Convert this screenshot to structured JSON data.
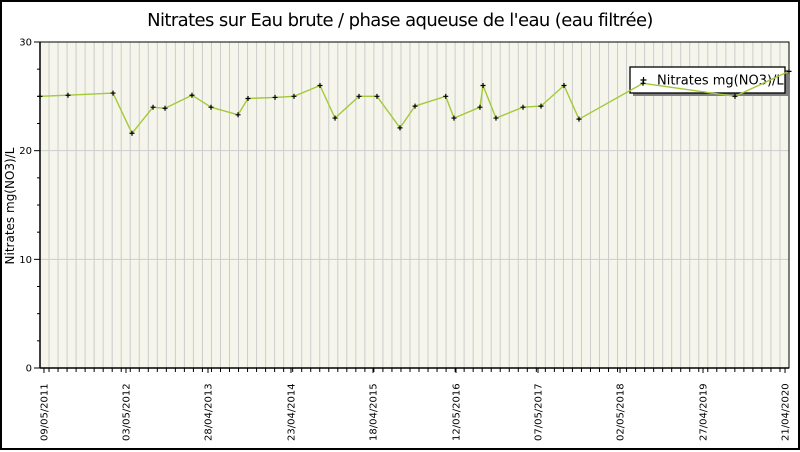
{
  "chart_data": {
    "type": "line",
    "title": "Nitrates sur Eau brute / phase aqueuse de l'eau (eau filtrée)",
    "xlabel": "",
    "ylabel": "Nitrates mg(NO3)/L",
    "ylim": [
      0,
      30
    ],
    "y_ticks": [
      0,
      10,
      20,
      30
    ],
    "y_minor_step": 2.5,
    "grid": "vertical-minor-on, horizontal-major-on",
    "legend_position": "top-right",
    "x_ticks": [
      {
        "label": "09/05/2011",
        "f": 0.0053
      },
      {
        "label": "03/05/2012",
        "f": 0.1148
      },
      {
        "label": "28/04/2013",
        "f": 0.2243
      },
      {
        "label": "23/04/2014",
        "f": 0.3351
      },
      {
        "label": "18/04/2015",
        "f": 0.4446
      },
      {
        "label": "12/05/2016",
        "f": 0.5554
      },
      {
        "label": "07/05/2017",
        "f": 0.6649
      },
      {
        "label": "02/05/2018",
        "f": 0.7744
      },
      {
        "label": "27/04/2019",
        "f": 0.8852
      },
      {
        "label": "21/04/2020",
        "f": 0.9947
      }
    ],
    "series": [
      {
        "name": "Nitrates mg(NO3)/L",
        "unit": "mg(NO3)/L",
        "points": [
          {
            "f": 0.0,
            "v": 25.0
          },
          {
            "f": 0.0374,
            "v": 25.1
          },
          {
            "f": 0.0975,
            "v": 25.3
          },
          {
            "f": 0.1228,
            "v": 21.6
          },
          {
            "f": 0.1509,
            "v": 24.0
          },
          {
            "f": 0.1669,
            "v": 23.9
          },
          {
            "f": 0.2029,
            "v": 25.1
          },
          {
            "f": 0.2283,
            "v": 24.0
          },
          {
            "f": 0.2644,
            "v": 23.3
          },
          {
            "f": 0.2777,
            "v": 24.8
          },
          {
            "f": 0.3138,
            "v": 24.9
          },
          {
            "f": 0.3391,
            "v": 25.0
          },
          {
            "f": 0.3738,
            "v": 26.0
          },
          {
            "f": 0.3939,
            "v": 23.0
          },
          {
            "f": 0.4259,
            "v": 25.0
          },
          {
            "f": 0.4499,
            "v": 25.0
          },
          {
            "f": 0.4806,
            "v": 22.1
          },
          {
            "f": 0.5007,
            "v": 24.1
          },
          {
            "f": 0.5417,
            "v": 25.0
          },
          {
            "f": 0.5527,
            "v": 23.0
          },
          {
            "f": 0.5874,
            "v": 24.0
          },
          {
            "f": 0.5915,
            "v": 26.0
          },
          {
            "f": 0.6088,
            "v": 23.0
          },
          {
            "f": 0.6449,
            "v": 24.0
          },
          {
            "f": 0.6689,
            "v": 24.1
          },
          {
            "f": 0.6996,
            "v": 26.0
          },
          {
            "f": 0.7196,
            "v": 22.9
          },
          {
            "f": 0.8051,
            "v": 26.2
          },
          {
            "f": 0.9279,
            "v": 25.0
          },
          {
            "f": 1.0,
            "v": 27.3
          }
        ]
      }
    ]
  },
  "legend": {
    "marker": "plus-marker",
    "label": "Nitrates mg(NO3)/L"
  },
  "colors": {
    "series_line": "#a3c939",
    "marker": "#000000",
    "plot_background": "#f5f5ec",
    "gridline": "#cccccc",
    "axis": "#000000",
    "legend_background": "#ffffff",
    "legend_border": "#000000",
    "legend_shadow": "#7f7f7f",
    "page_background": "#ffffff"
  }
}
